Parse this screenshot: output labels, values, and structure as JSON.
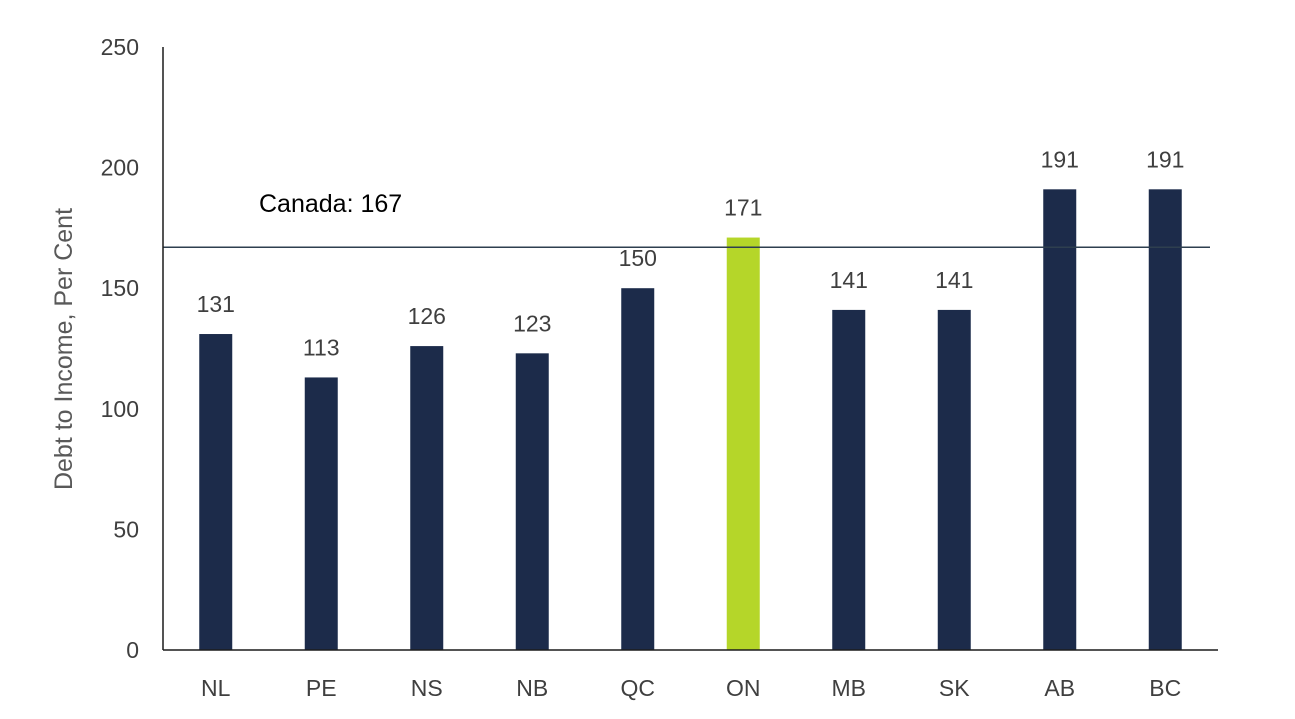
{
  "chart_data": {
    "type": "bar",
    "categories": [
      "NL",
      "PE",
      "NS",
      "NB",
      "QC",
      "ON",
      "MB",
      "SK",
      "AB",
      "BC"
    ],
    "values": [
      131,
      113,
      126,
      123,
      150,
      171,
      141,
      141,
      191,
      191
    ],
    "data_labels": [
      "131",
      "113",
      "126",
      "123",
      "150",
      "171",
      "141",
      "141",
      "191",
      "191"
    ],
    "highlight_category": "ON",
    "bar_color": "#1c2b4a",
    "highlight_color": "#b5d629",
    "xlabel": "",
    "ylabel": "Debt to Income, Per Cent",
    "ylim": [
      0,
      250
    ],
    "yticks": [
      0,
      50,
      100,
      150,
      200,
      250
    ],
    "ytick_labels": [
      "0",
      "50",
      "100",
      "150",
      "200",
      "250"
    ],
    "grid": false,
    "legend": "none",
    "reference_line": {
      "label": "Canada: 167",
      "value": 167,
      "color": "#2e3f4f"
    }
  }
}
